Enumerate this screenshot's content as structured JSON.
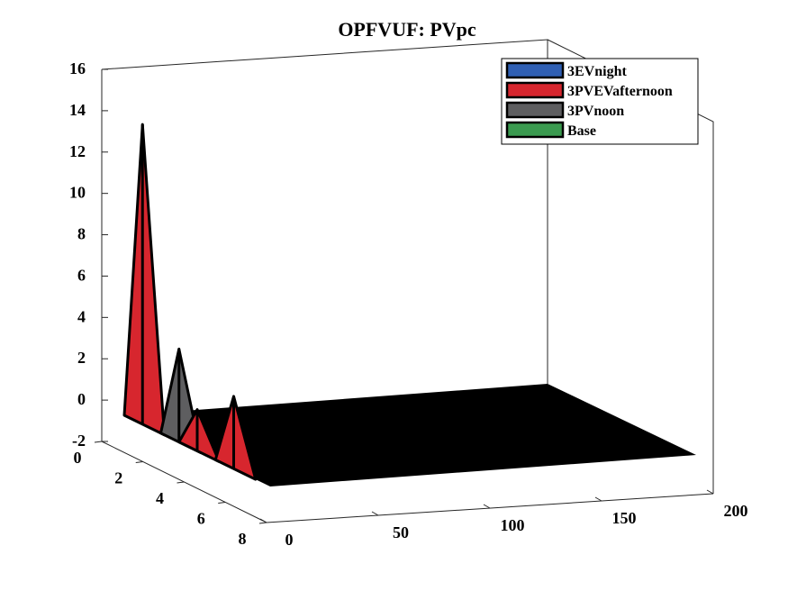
{
  "chart_data": {
    "type": "area",
    "title": "OPFVUF: PVpc",
    "xlabel": "",
    "ylabel": "",
    "zlabel": "",
    "x_axis": {
      "lim": [
        0,
        200
      ],
      "ticks": [
        "0",
        "50",
        "100",
        "150",
        "200"
      ]
    },
    "y_axis": {
      "lim": [
        0,
        8
      ],
      "ticks": [
        "0",
        "2",
        "4",
        "6",
        "8"
      ]
    },
    "z_axis": {
      "lim": [
        -2,
        16
      ],
      "ticks": [
        "-2",
        "0",
        "2",
        "4",
        "6",
        "8",
        "10",
        "12",
        "14",
        "16"
      ]
    },
    "grid": false,
    "legend_position": "top-right",
    "series": [
      {
        "name": "3EVnight",
        "color": "#2f5fb3",
        "peaks": []
      },
      {
        "name": "3PVEVafternoon",
        "color": "#d7262e",
        "peaks": [
          {
            "at": 1,
            "value": 14.5
          },
          {
            "at": 4,
            "value": 2.0
          },
          {
            "at": 6,
            "value": 3.5
          }
        ]
      },
      {
        "name": "3PVnoon",
        "color": "#5e5e60",
        "peaks": [
          {
            "at": 3,
            "value": 4.5
          }
        ]
      },
      {
        "name": "Base",
        "color": "#3a9a4f",
        "peaks": []
      }
    ],
    "floor_color": "#000000"
  }
}
